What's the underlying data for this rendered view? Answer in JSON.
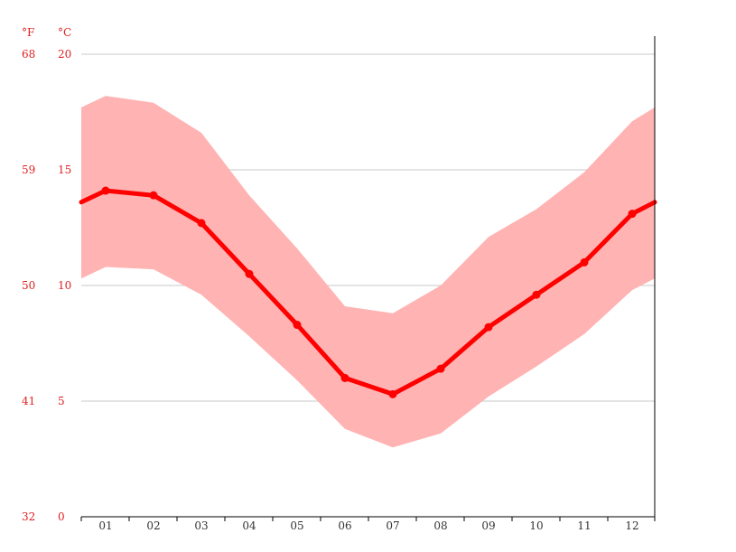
{
  "chart_data": {
    "type": "line",
    "units": {
      "left": "°F",
      "right": "°C"
    },
    "y_ticks_c": [
      "0",
      "5",
      "10",
      "15",
      "20"
    ],
    "y_ticks_f": [
      "32",
      "41",
      "50",
      "59",
      "68"
    ],
    "ylim": [
      0,
      20
    ],
    "categories": [
      "01",
      "02",
      "03",
      "04",
      "05",
      "06",
      "07",
      "08",
      "09",
      "10",
      "11",
      "12"
    ],
    "series": [
      {
        "values": [
          14.1,
          13.9,
          12.7,
          10.5,
          8.3,
          6.0,
          5.3,
          6.4,
          8.2,
          9.6,
          11.0,
          13.1
        ],
        "role": "mean"
      },
      {
        "values": [
          18.2,
          17.9,
          16.6,
          13.9,
          11.6,
          9.1,
          8.8,
          10.0,
          12.1,
          13.3,
          14.9,
          17.1
        ],
        "role": "max"
      },
      {
        "values": [
          10.8,
          10.7,
          9.6,
          7.8,
          5.9,
          3.8,
          3.0,
          3.6,
          5.2,
          6.5,
          7.9,
          9.8
        ],
        "role": "min"
      }
    ],
    "edge_values": {
      "left": {
        "mean": 13.6,
        "max": 17.7,
        "min": 10.3
      },
      "right": {
        "mean": 13.6,
        "max": 17.7,
        "min": 10.3
      }
    },
    "colors": {
      "line": "#ff0000",
      "band": "#ffb3b3",
      "grid": "#c8c8c8",
      "label": "#e02020"
    },
    "grid": true
  }
}
